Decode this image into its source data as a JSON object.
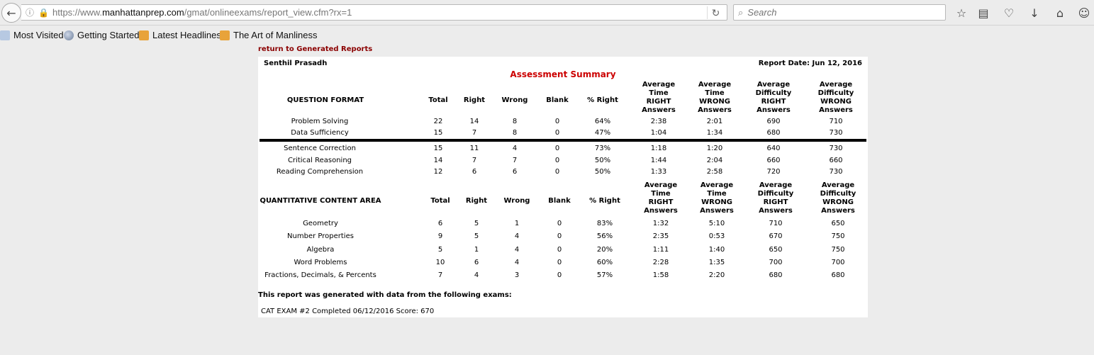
{
  "browser": {
    "url_prefix": "https://www.",
    "url_domain": "manhattanprep.com",
    "url_path": "/gmat/onlineexams/report_view.cfm?rx=1",
    "search_placeholder": "Search",
    "bookmarks": [
      "Most Visited",
      "Getting Started",
      "Latest Headlines",
      "The Art of Manliness"
    ]
  },
  "page": {
    "return_link": "return to Generated Reports",
    "student_name": "Senthil Prasadh",
    "report_date": "Report Date: Jun 12, 2016",
    "title": "Assessment Summary",
    "format_table": {
      "category_header": "QUESTION FORMAT",
      "headers": [
        "Total",
        "Right",
        "Wrong",
        "Blank",
        "% Right",
        "Average\nTime\nRIGHT\nAnswers",
        "Average\nTime\nWRONG\nAnswers",
        "Average\nDifficulty\nRIGHT\nAnswers",
        "Average\nDifficulty\nWRONG\nAnswers"
      ],
      "quant_rows": [
        {
          "label": "Problem Solving",
          "cells": [
            "22",
            "14",
            "8",
            "0",
            "64%",
            "2:38",
            "2:01",
            "690",
            "710"
          ]
        },
        {
          "label": "Data Sufficiency",
          "cells": [
            "15",
            "7",
            "8",
            "0",
            "47%",
            "1:04",
            "1:34",
            "680",
            "730"
          ]
        }
      ],
      "verbal_rows": [
        {
          "label": "Sentence Correction",
          "cells": [
            "15",
            "11",
            "4",
            "0",
            "73%",
            "1:18",
            "1:20",
            "640",
            "730"
          ]
        },
        {
          "label": "Critical Reasoning",
          "cells": [
            "14",
            "7",
            "7",
            "0",
            "50%",
            "1:44",
            "2:04",
            "660",
            "660"
          ]
        },
        {
          "label": "Reading Comprehension",
          "cells": [
            "12",
            "6",
            "6",
            "0",
            "50%",
            "1:33",
            "2:58",
            "720",
            "730"
          ]
        }
      ]
    },
    "content_table": {
      "category_header": "QUANTITATIVE CONTENT AREA",
      "headers": [
        "Total",
        "Right",
        "Wrong",
        "Blank",
        "% Right",
        "Average\nTime\nRIGHT\nAnswers",
        "Average\nTime\nWRONG\nAnswers",
        "Average\nDifficulty\nRIGHT\nAnswers",
        "Average\nDifficulty\nWRONG\nAnswers"
      ],
      "rows": [
        {
          "label": "Geometry",
          "cells": [
            "6",
            "5",
            "1",
            "0",
            "83%",
            "1:32",
            "5:10",
            "710",
            "650"
          ]
        },
        {
          "label": "Number Properties",
          "cells": [
            "9",
            "5",
            "4",
            "0",
            "56%",
            "2:35",
            "0:53",
            "670",
            "750"
          ]
        },
        {
          "label": "Algebra",
          "cells": [
            "5",
            "1",
            "4",
            "0",
            "20%",
            "1:11",
            "1:40",
            "650",
            "750"
          ]
        },
        {
          "label": "Word Problems",
          "cells": [
            "10",
            "6",
            "4",
            "0",
            "60%",
            "2:28",
            "1:35",
            "700",
            "700"
          ]
        },
        {
          "label": "Fractions, Decimals, & Percents",
          "cells": [
            "7",
            "4",
            "3",
            "0",
            "57%",
            "1:58",
            "2:20",
            "680",
            "680"
          ]
        }
      ]
    },
    "exams_intro": "This report was generated with data from the following exams:",
    "exam_entry": "CAT EXAM #2 Completed 06/12/2016 Score: 670"
  }
}
